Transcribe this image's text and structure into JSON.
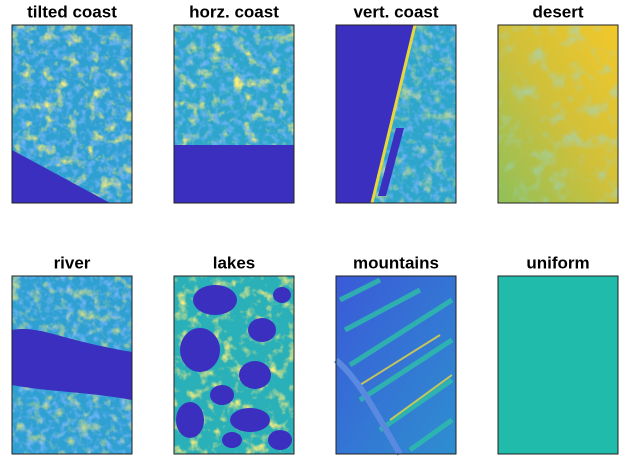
{
  "panels": [
    {
      "title": "tilted coast"
    },
    {
      "title": "horz. coast"
    },
    {
      "title": "vert. coast"
    },
    {
      "title": "desert"
    },
    {
      "title": "river"
    },
    {
      "title": "lakes"
    },
    {
      "title": "mountains"
    },
    {
      "title": "uniform"
    }
  ]
}
